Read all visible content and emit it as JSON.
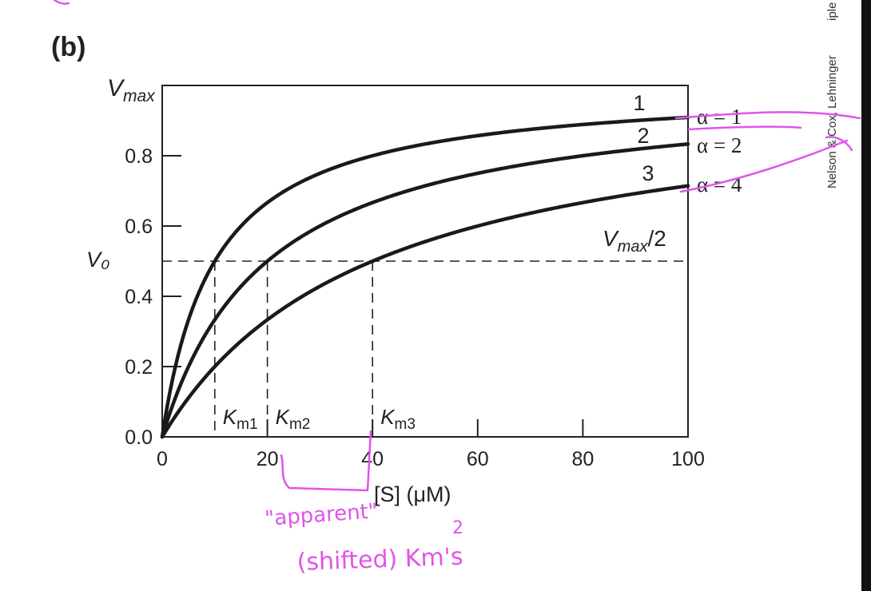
{
  "figure": {
    "panel_label": "(b)",
    "credit": "Nelson & Cox, Lehninger",
    "credit_cut": "iple"
  },
  "chart_data": {
    "type": "line",
    "title": "",
    "xlabel": "[S] (μM)",
    "ylabel": "V₀",
    "xlim": [
      0,
      100
    ],
    "ylim": [
      0,
      1.0
    ],
    "x_ticks": [
      "0",
      "20",
      "40",
      "60",
      "80",
      "100"
    ],
    "y_ticks": [
      "0.0",
      "0.2",
      "0.4",
      "0.6",
      "0.8"
    ],
    "y_top_label": {
      "base": "V",
      "sub": "max"
    },
    "grid": false,
    "vmax": 1.0,
    "km": 10,
    "x": [
      0,
      10,
      20,
      30,
      40,
      50,
      60,
      70,
      80,
      90,
      100
    ],
    "series": [
      {
        "name": "1",
        "alpha_label": "α = 1",
        "alpha": 1,
        "values": [
          0,
          0.5,
          0.667,
          0.75,
          0.8,
          0.833,
          0.857,
          0.875,
          0.889,
          0.9,
          0.909
        ]
      },
      {
        "name": "2",
        "alpha_label": "α = 2",
        "alpha": 2,
        "values": [
          0,
          0.333,
          0.5,
          0.6,
          0.667,
          0.714,
          0.75,
          0.778,
          0.8,
          0.818,
          0.833
        ]
      },
      {
        "name": "3",
        "alpha_label": "α = 4",
        "alpha": 4,
        "values": [
          0,
          0.2,
          0.333,
          0.429,
          0.5,
          0.556,
          0.6,
          0.636,
          0.667,
          0.692,
          0.714
        ]
      }
    ],
    "half_line": {
      "y": 0.5,
      "label_base": "V",
      "label_sub": "max",
      "label_tail": "/2"
    },
    "km_markers": [
      {
        "x": 10,
        "base": "K",
        "sub": "m1"
      },
      {
        "x": 20,
        "base": "K",
        "sub": "m2"
      },
      {
        "x": 40,
        "base": "K",
        "sub": "m3"
      }
    ]
  },
  "annotations": {
    "handwritten_line1": "\"apparent\"",
    "handwritten_line2": "(shifted) Km's",
    "handwritten_mark": "2"
  }
}
